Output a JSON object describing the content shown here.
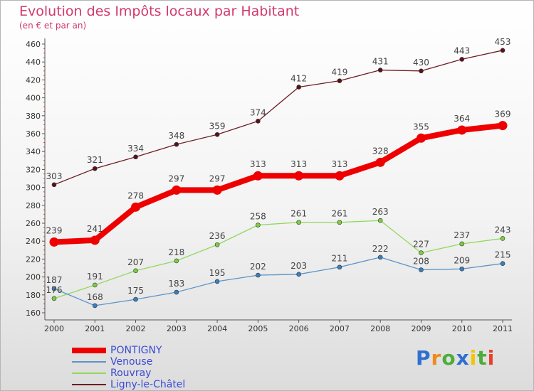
{
  "chart_data": {
    "type": "line",
    "title": "Evolution des Impôts locaux par Habitant",
    "subtitle": "(en € et par an)",
    "x": [
      "2000",
      "2001",
      "2002",
      "2003",
      "2004",
      "2005",
      "2006",
      "2007",
      "2008",
      "2009",
      "2010",
      "2011"
    ],
    "ylim": [
      160,
      460
    ],
    "yticks": [
      160,
      180,
      200,
      220,
      240,
      260,
      280,
      300,
      320,
      340,
      360,
      380,
      400,
      420,
      440,
      460
    ],
    "grid": false,
    "legend_position": "bottom-left",
    "series": [
      {
        "name": "PONTIGNY",
        "color": "#ee0000",
        "values": [
          239,
          241,
          278,
          297,
          297,
          313,
          313,
          313,
          328,
          355,
          364,
          369
        ]
      },
      {
        "name": "Venouse",
        "color": "#5b94c8",
        "values": [
          187,
          168,
          175,
          183,
          195,
          202,
          203,
          211,
          222,
          208,
          209,
          215
        ]
      },
      {
        "name": "Rouvray",
        "color": "#92d75e",
        "values": [
          176,
          191,
          207,
          218,
          236,
          258,
          261,
          261,
          263,
          227,
          237,
          243
        ]
      },
      {
        "name": "Ligny-le-Châtel",
        "color": "#6e1d24",
        "values": [
          303,
          321,
          334,
          348,
          359,
          374,
          412,
          419,
          431,
          430,
          443,
          453
        ]
      }
    ]
  },
  "logo": {
    "letters": [
      "P",
      "r",
      "o",
      "x",
      "i",
      "t",
      "i"
    ],
    "colors": [
      "#2f6fcf",
      "#f08a1c",
      "#4cae3a",
      "#2f6fcf",
      "#f5c400",
      "#4cae3a",
      "#e8402a"
    ]
  }
}
